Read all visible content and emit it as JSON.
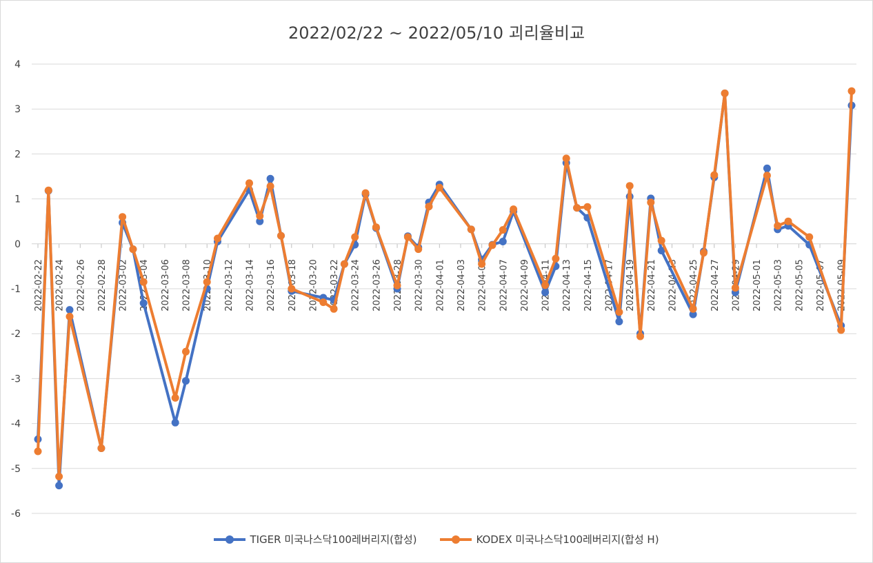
{
  "chart_data": {
    "type": "line",
    "title": "2022/02/22 ~ 2022/05/10 괴리율비교",
    "xlabel": "",
    "ylabel": "",
    "ylim": [
      -6,
      4
    ],
    "yticks": [
      4,
      3,
      2,
      1,
      0,
      -1,
      -2,
      -3,
      -4,
      -5,
      -6
    ],
    "xlim": [
      "2022-02-22",
      "2022-05-10"
    ],
    "xticks": [
      "2022-02-22",
      "2022-02-24",
      "2022-02-26",
      "2022-02-28",
      "2022-03-02",
      "2022-03-04",
      "2022-03-06",
      "2022-03-08",
      "2022-03-10",
      "2022-03-12",
      "2022-03-14",
      "2022-03-16",
      "2022-03-18",
      "2022-03-20",
      "2022-03-22",
      "2022-03-24",
      "2022-03-26",
      "2022-03-28",
      "2022-03-30",
      "2022-04-01",
      "2022-04-03",
      "2022-04-05",
      "2022-04-07",
      "2022-04-09",
      "2022-04-11",
      "2022-04-13",
      "2022-04-15",
      "2022-04-17",
      "2022-04-19",
      "2022-04-21",
      "2022-04-23",
      "2022-04-25",
      "2022-04-27",
      "2022-04-29",
      "2022-05-01",
      "2022-05-03",
      "2022-05-05",
      "2022-05-07",
      "2022-05-09"
    ],
    "grid": true,
    "legend_position": "bottom",
    "series": [
      {
        "name": "TIGER 미국나스닥100레버리지(합성)",
        "color": "#4472C4",
        "points": [
          [
            "2022-02-22",
            -4.35
          ],
          [
            "2022-02-23",
            1.18
          ],
          [
            "2022-02-24",
            -5.38
          ],
          [
            "2022-02-25",
            -1.47
          ],
          [
            "2022-02-28",
            -4.55
          ],
          [
            "2022-03-02",
            0.47
          ],
          [
            "2022-03-03",
            -0.12
          ],
          [
            "2022-03-04",
            -1.32
          ],
          [
            "2022-03-07",
            -3.98
          ],
          [
            "2022-03-08",
            -3.05
          ],
          [
            "2022-03-10",
            -1.0
          ],
          [
            "2022-03-11",
            0.05
          ],
          [
            "2022-03-14",
            1.2
          ],
          [
            "2022-03-15",
            0.5
          ],
          [
            "2022-03-16",
            1.45
          ],
          [
            "2022-03-17",
            0.18
          ],
          [
            "2022-03-18",
            -1.05
          ],
          [
            "2022-03-21",
            -1.2
          ],
          [
            "2022-03-22",
            -1.25
          ],
          [
            "2022-03-23",
            -0.45
          ],
          [
            "2022-03-24",
            -0.02
          ],
          [
            "2022-03-25",
            1.1
          ],
          [
            "2022-03-26",
            0.35
          ],
          [
            "2022-03-28",
            -1.0
          ],
          [
            "2022-03-29",
            0.17
          ],
          [
            "2022-03-30",
            -0.08
          ],
          [
            "2022-03-31",
            0.92
          ],
          [
            "2022-04-01",
            1.32
          ],
          [
            "2022-04-04",
            0.32
          ],
          [
            "2022-04-05",
            -0.35
          ],
          [
            "2022-04-06",
            -0.02
          ],
          [
            "2022-04-07",
            0.05
          ],
          [
            "2022-04-08",
            0.72
          ],
          [
            "2022-04-11",
            -1.08
          ],
          [
            "2022-04-12",
            -0.5
          ],
          [
            "2022-04-13",
            1.8
          ],
          [
            "2022-04-14",
            0.8
          ],
          [
            "2022-04-15",
            0.58
          ],
          [
            "2022-04-18",
            -1.73
          ],
          [
            "2022-04-19",
            1.05
          ],
          [
            "2022-04-20",
            -2.0
          ],
          [
            "2022-04-21",
            1.01
          ],
          [
            "2022-04-22",
            -0.15
          ],
          [
            "2022-04-25",
            -1.57
          ],
          [
            "2022-04-26",
            -0.17
          ],
          [
            "2022-04-27",
            1.48
          ],
          [
            "2022-04-28",
            3.35
          ],
          [
            "2022-04-29",
            -1.08
          ],
          [
            "2022-05-02",
            1.68
          ],
          [
            "2022-05-03",
            0.32
          ],
          [
            "2022-05-04",
            0.4
          ],
          [
            "2022-05-06",
            -0.02
          ],
          [
            "2022-05-09",
            -1.82
          ],
          [
            "2022-05-10",
            3.08
          ]
        ]
      },
      {
        "name": "KODEX 미국나스닥100레버리지(합성 H)",
        "color": "#ED7D31",
        "points": [
          [
            "2022-02-22",
            -4.62
          ],
          [
            "2022-02-23",
            1.19
          ],
          [
            "2022-02-24",
            -5.18
          ],
          [
            "2022-02-25",
            -1.62
          ],
          [
            "2022-02-28",
            -4.55
          ],
          [
            "2022-03-02",
            0.6
          ],
          [
            "2022-03-03",
            -0.12
          ],
          [
            "2022-03-04",
            -0.85
          ],
          [
            "2022-03-07",
            -3.43
          ],
          [
            "2022-03-08",
            -2.4
          ],
          [
            "2022-03-10",
            -0.85
          ],
          [
            "2022-03-11",
            0.12
          ],
          [
            "2022-03-14",
            1.35
          ],
          [
            "2022-03-15",
            0.62
          ],
          [
            "2022-03-16",
            1.28
          ],
          [
            "2022-03-17",
            0.18
          ],
          [
            "2022-03-18",
            -1.0
          ],
          [
            "2022-03-21",
            -1.3
          ],
          [
            "2022-03-22",
            -1.45
          ],
          [
            "2022-03-23",
            -0.45
          ],
          [
            "2022-03-24",
            0.15
          ],
          [
            "2022-03-25",
            1.13
          ],
          [
            "2022-03-26",
            0.37
          ],
          [
            "2022-03-28",
            -0.93
          ],
          [
            "2022-03-29",
            0.15
          ],
          [
            "2022-03-30",
            -0.12
          ],
          [
            "2022-03-31",
            0.83
          ],
          [
            "2022-04-01",
            1.25
          ],
          [
            "2022-04-04",
            0.32
          ],
          [
            "2022-04-05",
            -0.45
          ],
          [
            "2022-04-06",
            -0.03
          ],
          [
            "2022-04-07",
            0.31
          ],
          [
            "2022-04-08",
            0.77
          ],
          [
            "2022-04-11",
            -0.92
          ],
          [
            "2022-04-12",
            -0.33
          ],
          [
            "2022-04-13",
            1.9
          ],
          [
            "2022-04-14",
            0.8
          ],
          [
            "2022-04-15",
            0.82
          ],
          [
            "2022-04-18",
            -1.52
          ],
          [
            "2022-04-19",
            1.29
          ],
          [
            "2022-04-20",
            -2.06
          ],
          [
            "2022-04-21",
            0.92
          ],
          [
            "2022-04-22",
            0.07
          ],
          [
            "2022-04-25",
            -1.45
          ],
          [
            "2022-04-26",
            -0.2
          ],
          [
            "2022-04-27",
            1.53
          ],
          [
            "2022-04-28",
            3.35
          ],
          [
            "2022-04-29",
            -0.98
          ],
          [
            "2022-05-02",
            1.52
          ],
          [
            "2022-05-03",
            0.4
          ],
          [
            "2022-05-04",
            0.5
          ],
          [
            "2022-05-06",
            0.15
          ],
          [
            "2022-05-09",
            -1.92
          ],
          [
            "2022-05-10",
            3.4
          ]
        ]
      }
    ]
  }
}
